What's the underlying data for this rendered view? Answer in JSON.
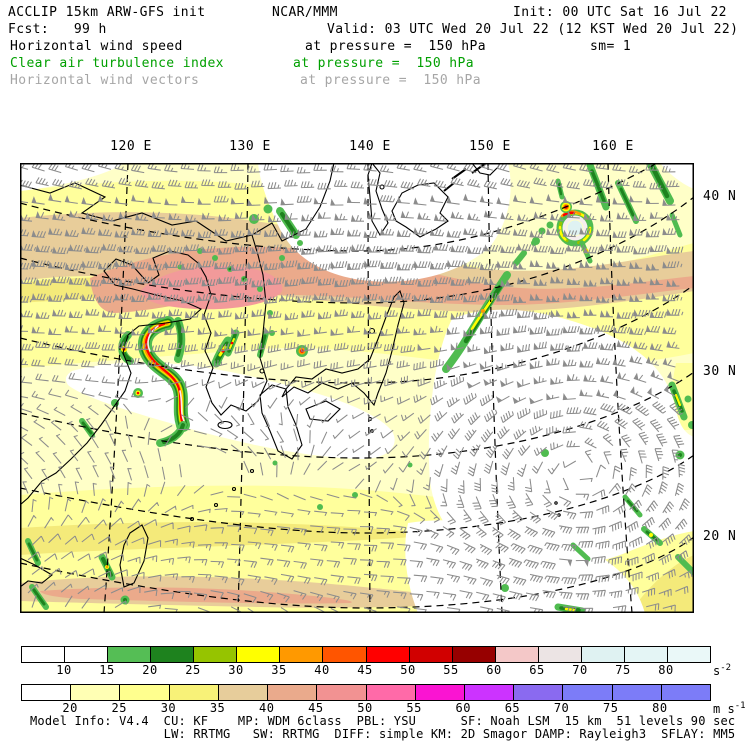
{
  "header": {
    "model_line": "ACCLIP 15km ARW-GFS init",
    "center": "NCAR/MMM",
    "init": "Init: 00 UTC Sat 16 Jul 22",
    "fcst": "Fcst:   99 h",
    "valid": "Valid: 03 UTC Wed 20 Jul 22 (12 KST Wed 20 Jul 22)",
    "sm": "sm= 1",
    "fields": [
      {
        "label": "Horizontal wind speed",
        "level": "at pressure =  150 hPa",
        "color": "#000000"
      },
      {
        "label": "Clear air turbulence index",
        "level": "at pressure =  150 hPa",
        "color": "#00a000"
      },
      {
        "label": "Horizontal wind vectors",
        "level": "at pressure =  150 hPa",
        "color": "#a6a6a6"
      }
    ]
  },
  "map": {
    "lon_labels": [
      {
        "text": "120 E",
        "x": 131
      },
      {
        "text": "130 E",
        "x": 250
      },
      {
        "text": "140 E",
        "x": 370
      },
      {
        "text": "150 E",
        "x": 490
      },
      {
        "text": "160 E",
        "x": 613
      }
    ],
    "lat_labels": [
      {
        "text": "40 N",
        "y": 197
      },
      {
        "text": "30 N",
        "y": 372
      },
      {
        "text": "20 N",
        "y": 537
      }
    ],
    "colors": {
      "base": "#ffffc8",
      "y1": "#ffff9c",
      "y2": "#f4ea7a",
      "tan": "#e8cd9a",
      "salmon": "#ebaa8b",
      "pink": "#f29a9a",
      "white": "#ffffff",
      "g1": "#50bc50",
      "g2": "#1e821e",
      "olive": "#96c400",
      "yel": "#ffff00",
      "orn": "#ff9900",
      "rorn": "#ff5500",
      "red": "#ff0000",
      "core": "#f6eeee",
      "cyan": "#dff2f2",
      "coast": "#000000",
      "grid": "#000000",
      "barb": "#8c8c8c"
    }
  },
  "colorbars": [
    {
      "name": "Clear air turbulence index",
      "values": [
        "10",
        "15",
        "20",
        "25",
        "30",
        "35",
        "40",
        "45",
        "50",
        "55",
        "60",
        "65",
        "70",
        "75",
        "80"
      ],
      "cells": [
        "#ffffff",
        "#ffffff",
        "#55be55",
        "#1e821e",
        "#96c400",
        "#ffff00",
        "#ff9900",
        "#ff5500",
        "#ff0000",
        "#d10000",
        "#970000",
        "#f4c8c8",
        "#ece4e4",
        "#dff2f2",
        "#e4f5f5",
        "#eaf8f8"
      ],
      "unit_base": "s",
      "unit_exp": "-2"
    },
    {
      "name": "Horizontal wind speed",
      "values": [
        "20",
        "25",
        "30",
        "35",
        "40",
        "45",
        "50",
        "55",
        "60",
        "65",
        "70",
        "75",
        "80"
      ],
      "cells": [
        "#ffffff",
        "#ffffb4",
        "#ffff8e",
        "#f8f278",
        "#e7cd9b",
        "#eaaa8c",
        "#f29292",
        "#ff6aa8",
        "#fa14d2",
        "#cc33ff",
        "#8a6af0",
        "#7c7cf8",
        "#7c7cf8",
        "#7c7cf8"
      ],
      "unit_base": "m s",
      "unit_exp": "-1"
    }
  ],
  "footer": {
    "line1": "Model Info: V4.4  CU: KF    MP: WDM 6class  PBL: YSU      SF: Noah LSM  15 km  51 levels 90 sec",
    "line2": "                  LW: RRTMG   SW: RRTMG  DIFF: simple KM: 2D Smagor DAMP: Rayleigh3  SFLAY: MM5"
  },
  "chart_data": {
    "type": "heatmap",
    "title": "ACCLIP 15km ARW-GFS: horizontal wind speed, clear air turbulence index and horizontal wind vectors at 150 hPa",
    "init_time": "00 UTC Sat 16 Jul 22",
    "valid_time": "03 UTC Wed 20 Jul 22 (12 KST Wed 20 Jul 22)",
    "forecast_hour": 99,
    "x_ticks": [
      "120 E",
      "130 E",
      "140 E",
      "150 E",
      "160 E"
    ],
    "y_ticks": [
      "40 N",
      "30 N",
      "20 N"
    ],
    "legend_position": "bottom",
    "scales": [
      {
        "name": "Clear air turbulence index",
        "unit": "s^-2",
        "boundaries": [
          10,
          15,
          20,
          25,
          30,
          35,
          40,
          45,
          50,
          55,
          60,
          65,
          70,
          75,
          80
        ],
        "colors": [
          "#ffffff",
          "#ffffff",
          "#55be55",
          "#1e821e",
          "#96c400",
          "#ffff00",
          "#ff9900",
          "#ff5500",
          "#ff0000",
          "#d10000",
          "#970000",
          "#f4c8c8",
          "#ece4e4",
          "#dff2f2",
          "#e4f5f5",
          "#eaf8f8"
        ]
      },
      {
        "name": "Horizontal wind speed",
        "unit": "m s^-1",
        "boundaries": [
          20,
          25,
          30,
          35,
          40,
          45,
          50,
          55,
          60,
          65,
          70,
          75,
          80
        ],
        "colors": [
          "#ffffff",
          "#ffffb4",
          "#ffff8e",
          "#f8f278",
          "#e7cd9b",
          "#eaaa8c",
          "#f29292",
          "#ff6aa8",
          "#fa14d2",
          "#cc33ff",
          "#8a6af0",
          "#7c7cf8",
          "#7c7cf8",
          "#7c7cf8"
        ]
      }
    ],
    "model_config": {
      "version": "V4.4",
      "cu": "KF",
      "mp": "WDM 6class",
      "pbl": "YSU",
      "sf": "Noah LSM",
      "grid": "15 km",
      "levels": "51 levels",
      "timestep": "90 sec",
      "lw": "RRTMG",
      "sw": "RRTMG",
      "diff": "simple",
      "km": "2D Smagor",
      "damp": "Rayleigh3",
      "sflay": "MM5"
    }
  }
}
